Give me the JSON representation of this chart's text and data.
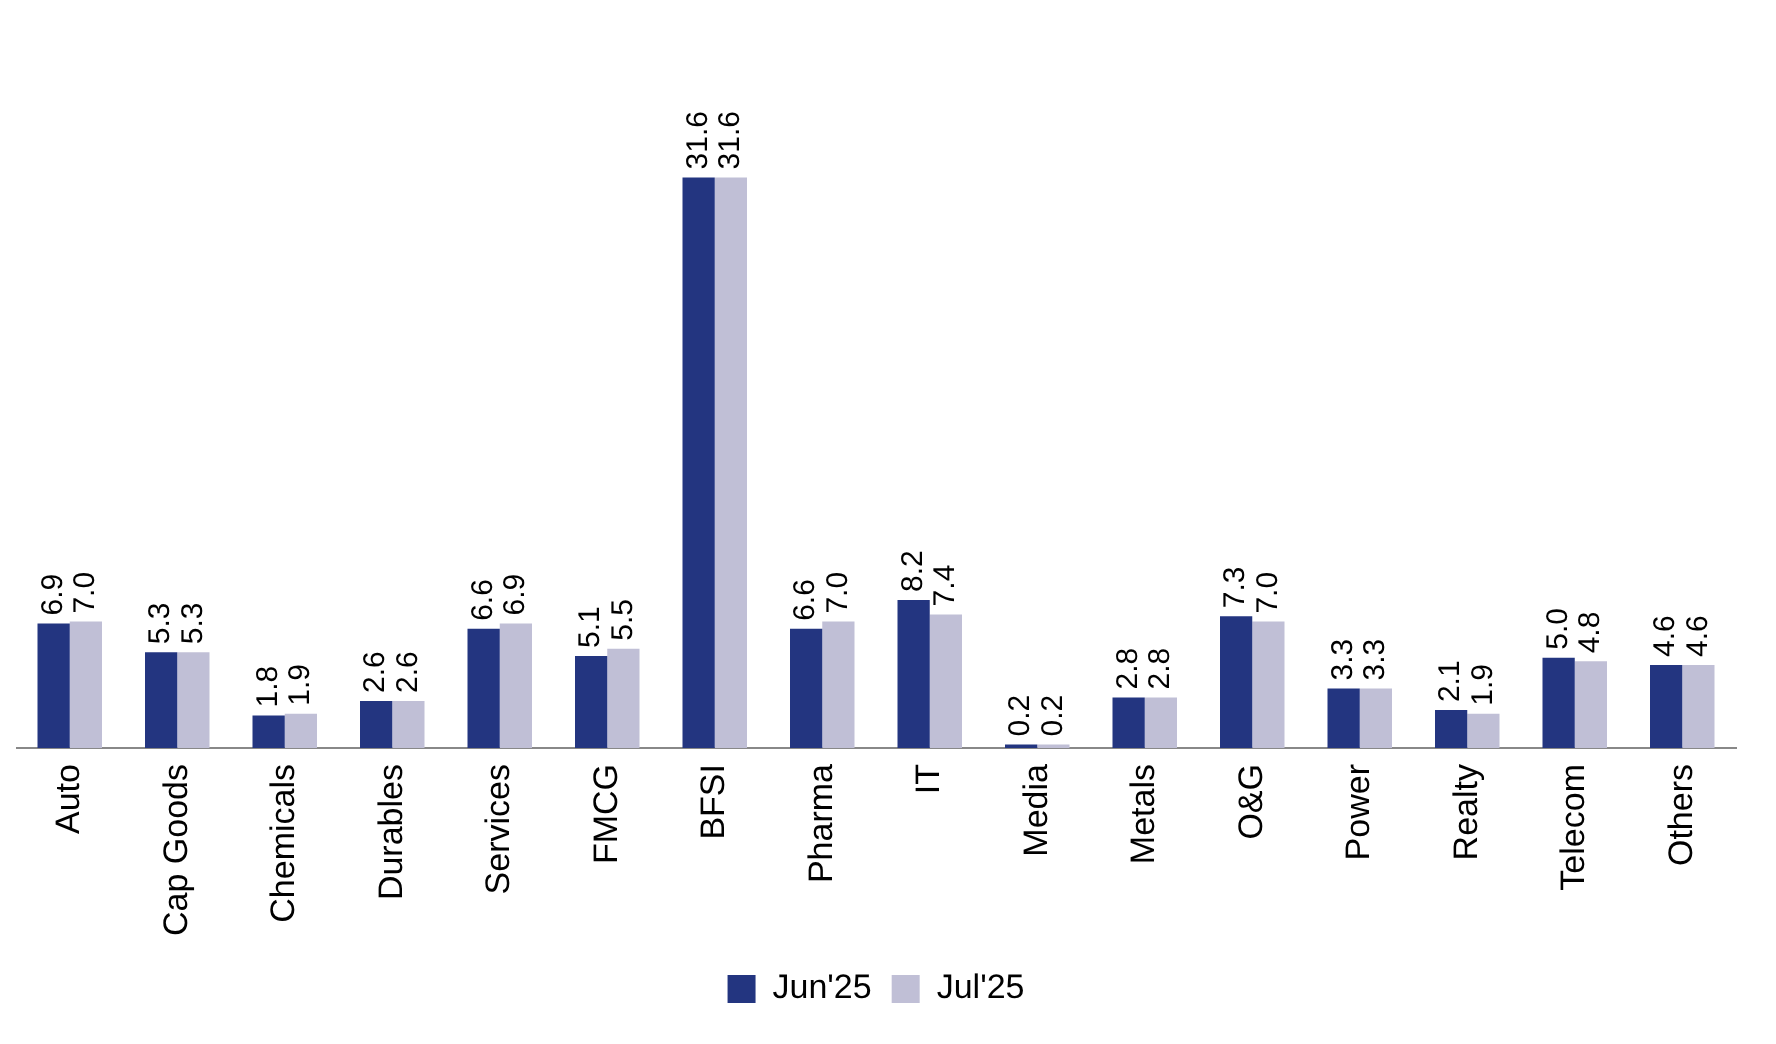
{
  "chart_data": {
    "type": "bar",
    "categories": [
      "Auto",
      "Cap Goods",
      "Chemicals",
      "Durables",
      "Services",
      "FMCG",
      "BFSI",
      "Pharma",
      "IT",
      "Media",
      "Metals",
      "O&G",
      "Power",
      "Realty",
      "Telecom",
      "Others"
    ],
    "series": [
      {
        "name": "Jun'25",
        "color": "#233580",
        "values": [
          6.9,
          5.3,
          1.8,
          2.6,
          6.6,
          5.1,
          31.6,
          6.6,
          8.2,
          0.2,
          2.8,
          7.3,
          3.3,
          2.1,
          5.0,
          4.6
        ],
        "value_labels": [
          "6.9",
          "5.3",
          "1.8",
          "2.6",
          "6.6",
          "5.1",
          "31.6",
          "6.6",
          "8.2",
          "0.2",
          "2.8",
          "7.3",
          "3.3",
          "2.1",
          "5.0",
          "4.6"
        ]
      },
      {
        "name": "Jul'25",
        "color": "#c0bfd6",
        "values": [
          7.0,
          5.3,
          1.9,
          2.6,
          6.9,
          5.5,
          31.6,
          7.0,
          7.4,
          0.2,
          2.8,
          7.0,
          3.3,
          1.9,
          4.8,
          4.6
        ],
        "value_labels": [
          "7.0",
          "5.3",
          "1.9",
          "2.6",
          "6.9",
          "5.5",
          "31.6",
          "7.0",
          "7.4",
          "0.2",
          "2.8",
          "7.0",
          "3.3",
          "1.9",
          "4.8",
          "4.6"
        ]
      }
    ],
    "legend": "bottom"
  }
}
